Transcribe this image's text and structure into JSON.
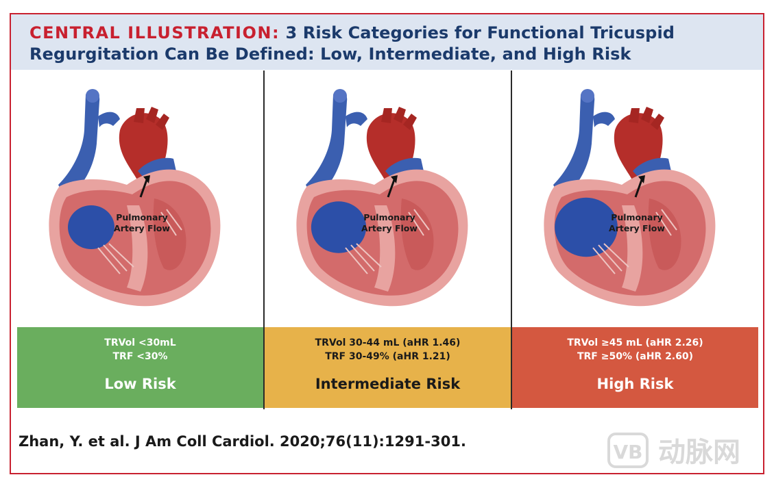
{
  "header": {
    "label": "CENTRAL ILLUSTRATION:",
    "line1": "3 Risk Categories for Functional Tricuspid",
    "line2": "Regurgitation Can Be Defined: Low, Intermediate, and High Risk"
  },
  "panels": [
    {
      "flow_line1": "Pulmonary",
      "flow_line2": "Artery Flow",
      "metric1": "TRVol <30mL",
      "metric2": "TRF <30%",
      "risk": "Low Risk",
      "box_color": "#6aae5e",
      "text_color": "#ffffff"
    },
    {
      "flow_line1": "Pulmonary",
      "flow_line2": "Artery Flow",
      "metric1": "TRVol 30-44 mL (aHR 1.46)",
      "metric2": "TRF 30-49% (aHR 1.21)",
      "risk": "Intermediate Risk",
      "box_color": "#e7b24a",
      "text_color": "#1a1a1a"
    },
    {
      "flow_line1": "Pulmonary",
      "flow_line2": "Artery Flow",
      "metric1": "TRVol ≥45 mL (aHR 2.26)",
      "metric2": "TRF ≥50% (aHR 2.60)",
      "risk": "High Risk",
      "box_color": "#d45840",
      "text_color": "#ffffff"
    }
  ],
  "citation": "Zhan, Y. et al. J Am Coll Cardiol. 2020;76(11):1291-301.",
  "watermark": {
    "badge": "VB",
    "text": "动脉网"
  },
  "colors": {
    "border": "#c8202f",
    "title_blue": "#1b3a6b",
    "title_bg": "#dde5f1"
  }
}
